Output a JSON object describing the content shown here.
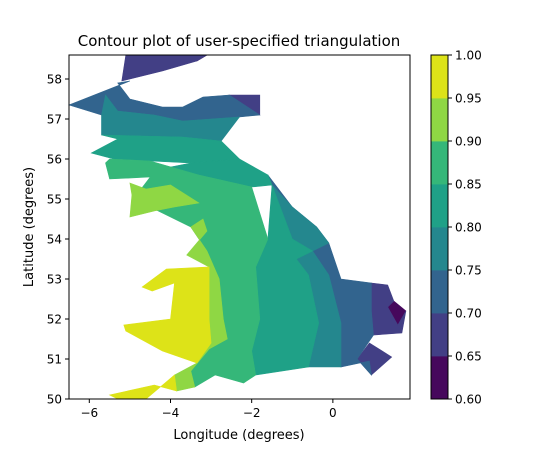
{
  "chart_data": {
    "type": "contour",
    "title": "Contour plot of user-specified triangulation",
    "xlabel": "Longitude (degrees)",
    "ylabel": "Latitude (degrees)",
    "xlim": [
      -6.5,
      1.9
    ],
    "ylim": [
      50.0,
      58.6
    ],
    "xticks": [
      -6,
      -4,
      -2,
      0
    ],
    "xtick_labels": [
      "−6",
      "−4",
      "−2",
      "0"
    ],
    "yticks": [
      50,
      51,
      52,
      53,
      54,
      55,
      56,
      57,
      58
    ],
    "ytick_labels": [
      "50",
      "51",
      "52",
      "53",
      "54",
      "55",
      "56",
      "57",
      "58"
    ],
    "grid": false,
    "colorbar": {
      "levels": [
        0.6,
        0.65,
        0.7,
        0.75,
        0.8,
        0.85,
        0.9,
        0.95,
        1.0
      ],
      "tick_labels": [
        "0.60",
        "0.65",
        "0.70",
        "0.75",
        "0.80",
        "0.85",
        "0.90",
        "0.95",
        "1.00"
      ],
      "colors": [
        "#46085c",
        "#423f85",
        "#32648e",
        "#24878e",
        "#1fa187",
        "#35b779",
        "#8fd744",
        "#dde318"
      ]
    },
    "bands": [
      {
        "range": [
          0.6,
          0.65
        ],
        "color": "#46085c",
        "polygons": [
          [
            [
              -3.1,
              58.6
            ],
            [
              -3.6,
              58.6
            ],
            [
              -3.35,
              58.45
            ]
          ],
          [
            [
              1.8,
              52.2
            ],
            [
              1.6,
              51.85
            ],
            [
              1.35,
              52.3
            ],
            [
              1.5,
              52.45
            ]
          ]
        ]
      },
      {
        "range": [
          0.65,
          0.7
        ],
        "color": "#423f85",
        "polygons": [
          [
            [
              -5.1,
              58.6
            ],
            [
              -3.1,
              58.6
            ],
            [
              -3.35,
              58.45
            ],
            [
              -4.2,
              58.2
            ],
            [
              -5.2,
              57.95
            ]
          ],
          [
            [
              -2.55,
              57.6
            ],
            [
              -1.8,
              57.6
            ],
            [
              -1.8,
              57.1
            ]
          ],
          [
            [
              0.95,
              52.9
            ],
            [
              1.35,
              52.85
            ],
            [
              1.5,
              52.45
            ],
            [
              1.35,
              52.3
            ],
            [
              1.6,
              51.85
            ],
            [
              1.8,
              52.2
            ],
            [
              1.7,
              51.65
            ],
            [
              1.0,
              51.6
            ],
            [
              0.95,
              52.2
            ]
          ],
          [
            [
              0.9,
              51.4
            ],
            [
              1.45,
              51.05
            ],
            [
              0.95,
              50.6
            ],
            [
              0.6,
              51.0
            ]
          ]
        ]
      },
      {
        "range": [
          0.7,
          0.75
        ],
        "color": "#32648e",
        "polygons": [
          [
            [
              -6.5,
              57.35
            ],
            [
              -5.7,
              57.1
            ],
            [
              -5.6,
              57.6
            ],
            [
              -5.3,
              57.2
            ],
            [
              -4.4,
              57.1
            ],
            [
              -3.7,
              56.95
            ],
            [
              -2.3,
              57.05
            ],
            [
              -1.8,
              57.1
            ],
            [
              -2.55,
              57.6
            ],
            [
              -3.2,
              57.55
            ],
            [
              -3.7,
              57.3
            ],
            [
              -4.2,
              57.3
            ],
            [
              -5.0,
              57.5
            ],
            [
              -5.3,
              57.9
            ],
            [
              -5.0,
              57.95
            ]
          ],
          [
            [
              -1.6,
              55.6
            ],
            [
              -1.0,
              54.8
            ],
            [
              -0.4,
              54.3
            ],
            [
              -0.1,
              53.9
            ],
            [
              0.2,
              53.0
            ],
            [
              0.95,
              52.9
            ],
            [
              0.95,
              52.2
            ],
            [
              1.0,
              51.6
            ],
            [
              0.6,
              51.0
            ],
            [
              0.95,
              50.6
            ],
            [
              0.9,
              50.95
            ],
            [
              0.2,
              50.8
            ],
            [
              0.2,
              51.9
            ],
            [
              -0.1,
              53.1
            ],
            [
              -0.5,
              53.7
            ],
            [
              -1.0,
              54.0
            ]
          ]
        ]
      },
      {
        "range": [
          0.75,
          0.8
        ],
        "color": "#24878e",
        "polygons": [
          [
            [
              -5.7,
              57.1
            ],
            [
              -5.7,
              56.6
            ],
            [
              -3.7,
              56.55
            ],
            [
              -2.75,
              56.45
            ],
            [
              -2.3,
              57.05
            ],
            [
              -3.7,
              56.95
            ],
            [
              -4.4,
              57.1
            ],
            [
              -5.3,
              57.2
            ],
            [
              -5.6,
              57.6
            ]
          ],
          [
            [
              -1.5,
              55.35
            ],
            [
              -1.0,
              54.8
            ],
            [
              -0.4,
              54.3
            ],
            [
              -0.1,
              53.9
            ],
            [
              -0.5,
              53.7
            ],
            [
              -0.9,
              53.5
            ],
            [
              -0.6,
              53.1
            ],
            [
              -0.35,
              51.9
            ],
            [
              -0.6,
              50.8
            ],
            [
              0.2,
              50.8
            ],
            [
              0.2,
              51.9
            ],
            [
              -0.1,
              53.1
            ],
            [
              -0.5,
              53.7
            ],
            [
              -1.0,
              54.0
            ],
            [
              -1.6,
              55.6
            ]
          ]
        ]
      },
      {
        "range": [
          0.8,
          0.85
        ],
        "color": "#1fa187",
        "polygons": [
          [
            [
              -5.95,
              56.15
            ],
            [
              -5.3,
              56.5
            ],
            [
              -5.7,
              56.6
            ],
            [
              -3.7,
              56.55
            ],
            [
              -2.75,
              56.45
            ],
            [
              -2.3,
              56.0
            ],
            [
              -3.5,
              55.9
            ],
            [
              -4.5,
              55.95
            ],
            [
              -5.4,
              56.0
            ]
          ],
          [
            [
              -1.5,
              55.35
            ],
            [
              -1.6,
              54.0
            ],
            [
              -1.9,
              53.3
            ],
            [
              -1.8,
              52.0
            ],
            [
              -2.0,
              51.2
            ],
            [
              -1.9,
              50.6
            ],
            [
              -0.6,
              50.8
            ],
            [
              -0.35,
              51.9
            ],
            [
              -0.6,
              53.1
            ],
            [
              -0.9,
              53.5
            ],
            [
              -0.5,
              53.7
            ],
            [
              -1.0,
              54.0
            ]
          ],
          [
            [
              -2.3,
              56.0
            ],
            [
              -1.6,
              55.6
            ],
            [
              -1.5,
              55.35
            ],
            [
              -2.0,
              55.3
            ],
            [
              -3.3,
              55.6
            ],
            [
              -4.5,
              55.7
            ],
            [
              -3.5,
              55.9
            ]
          ]
        ]
      },
      {
        "range": [
          0.85,
          0.9
        ],
        "color": "#35b779",
        "polygons": [
          [
            [
              -5.5,
              56.0
            ],
            [
              -4.5,
              55.95
            ],
            [
              -3.3,
              55.6
            ],
            [
              -2.0,
              55.3
            ],
            [
              -1.6,
              54.0
            ],
            [
              -1.9,
              53.3
            ],
            [
              -1.8,
              52.0
            ],
            [
              -2.0,
              51.2
            ],
            [
              -1.9,
              50.6
            ],
            [
              -2.2,
              50.4
            ],
            [
              -2.9,
              50.6
            ],
            [
              -3.4,
              50.3
            ],
            [
              -3.5,
              50.7
            ],
            [
              -3.05,
              51.25
            ],
            [
              -2.6,
              51.5
            ],
            [
              -2.7,
              52.0
            ],
            [
              -2.8,
              53.0
            ],
            [
              -3.1,
              53.7
            ],
            [
              -3.5,
              54.3
            ],
            [
              -4.7,
              54.9
            ],
            [
              -4.8,
              55.15
            ],
            [
              -4.5,
              55.55
            ],
            [
              -5.5,
              55.5
            ],
            [
              -5.6,
              55.9
            ]
          ]
        ]
      },
      {
        "range": [
          0.9,
          0.95
        ],
        "color": "#8fd744",
        "polygons": [
          [
            [
              -5.0,
              55.4
            ],
            [
              -4.6,
              55.25
            ],
            [
              -4.0,
              55.35
            ],
            [
              -3.3,
              54.9
            ],
            [
              -3.9,
              54.8
            ],
            [
              -4.4,
              54.7
            ],
            [
              -5.0,
              54.55
            ],
            [
              -4.95,
              55.1
            ]
          ],
          [
            [
              -3.2,
              54.5
            ],
            [
              -3.5,
              54.3
            ],
            [
              -3.1,
              53.7
            ],
            [
              -2.8,
              53.0
            ],
            [
              -2.7,
              52.0
            ],
            [
              -2.6,
              51.5
            ],
            [
              -3.05,
              51.25
            ],
            [
              -3.5,
              50.7
            ],
            [
              -3.4,
              50.3
            ],
            [
              -3.85,
              50.2
            ],
            [
              -3.9,
              50.6
            ],
            [
              -3.35,
              50.9
            ],
            [
              -3.0,
              51.4
            ],
            [
              -3.05,
              52.0
            ],
            [
              -3.05,
              53.3
            ],
            [
              -3.6,
              53.6
            ],
            [
              -3.1,
              54.2
            ]
          ]
        ]
      },
      {
        "range": [
          0.95,
          1.0
        ],
        "color": "#dde318",
        "polygons": [
          [
            [
              -4.1,
              53.25
            ],
            [
              -3.05,
              53.3
            ],
            [
              -3.05,
              52.0
            ],
            [
              -3.0,
              51.4
            ],
            [
              -3.35,
              50.9
            ],
            [
              -4.2,
              51.2
            ],
            [
              -5.1,
              51.7
            ],
            [
              -5.15,
              51.85
            ],
            [
              -4.0,
              52.0
            ],
            [
              -3.9,
              52.9
            ],
            [
              -4.45,
              52.7
            ],
            [
              -4.7,
              52.8
            ]
          ],
          [
            [
              -5.3,
              50.0
            ],
            [
              -4.6,
              50.0
            ],
            [
              -3.9,
              50.6
            ],
            [
              -3.85,
              50.2
            ],
            [
              -4.4,
              50.35
            ],
            [
              -5.5,
              50.1
            ]
          ]
        ]
      }
    ]
  }
}
